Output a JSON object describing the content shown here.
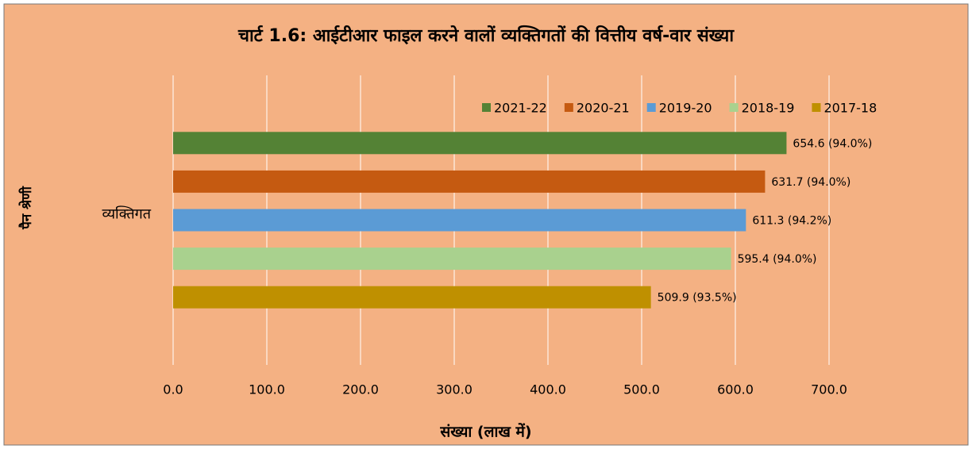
{
  "chart_data": {
    "type": "barh",
    "title": "चार्ट 1.6: आईटीआर फाइल करने वालों व्यक्तिगतों की वित्तीय वर्ष-वार संख्या",
    "xlabel": "संख्या (लाख में)",
    "ylabel": "पैन श्रेणी",
    "categories": [
      "व्यक्तिगत"
    ],
    "series": [
      {
        "name": "2021-22",
        "color": "#548235",
        "values": [
          654.6
        ],
        "value_labels": [
          "654.6 (94.0%)"
        ]
      },
      {
        "name": "2020-21",
        "color": "#c55a11",
        "values": [
          631.7
        ],
        "value_labels": [
          "631.7 (94.0%)"
        ]
      },
      {
        "name": "2019-20",
        "color": "#5b9bd5",
        "values": [
          611.3
        ],
        "value_labels": [
          "611.3 (94.2%)"
        ]
      },
      {
        "name": "2018-19",
        "color": "#a9d18e",
        "values": [
          595.4
        ],
        "value_labels": [
          "595.4 (94.0%)"
        ]
      },
      {
        "name": "2017-18",
        "color": "#bf9000",
        "values": [
          509.9
        ],
        "value_labels": [
          "509.9 (93.5%)"
        ]
      }
    ],
    "xlim": [
      0,
      700
    ],
    "xticks": [
      {
        "value": 0,
        "label": "0.0"
      },
      {
        "value": 100,
        "label": "100.0"
      },
      {
        "value": 200,
        "label": "200.0"
      },
      {
        "value": 300,
        "label": "300.0"
      },
      {
        "value": 400,
        "label": "400.0"
      },
      {
        "value": 500,
        "label": "500.0"
      },
      {
        "value": 600,
        "label": "600.0"
      },
      {
        "value": 700,
        "label": "700.0"
      }
    ],
    "grid": true,
    "legend": "top-right"
  }
}
